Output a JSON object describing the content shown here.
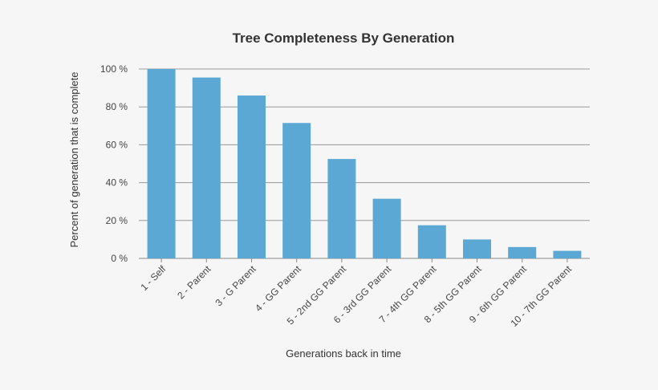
{
  "chart_data": {
    "type": "bar",
    "title": "Tree Completeness By Generation",
    "xlabel": "Generations back in time",
    "ylabel": "Percent of generation that is complete",
    "categories": [
      "1 - Self",
      "2 - Parent",
      "3 - G Parent",
      "4 - GG Parent",
      "5 - 2nd GG Parent",
      "6 - 3rd GG Parent",
      "7 - 4th GG Parent",
      "8 - 5th GG Parent",
      "9 - 6th GG Parent",
      "10 - 7th GG Parent"
    ],
    "values": [
      100,
      95.5,
      86,
      71.5,
      52.5,
      31.5,
      17.5,
      10,
      6,
      4
    ],
    "ylim": [
      0,
      100
    ],
    "yticks": [
      0,
      20,
      40,
      60,
      80,
      100
    ],
    "ytick_labels": [
      "0 %",
      "20 %",
      "40 %",
      "60 %",
      "80 %",
      "100 %"
    ],
    "grid": true,
    "colors": {
      "bar": "#5ba8d4",
      "background": "#f6f6f6",
      "grid": "#999999"
    }
  }
}
